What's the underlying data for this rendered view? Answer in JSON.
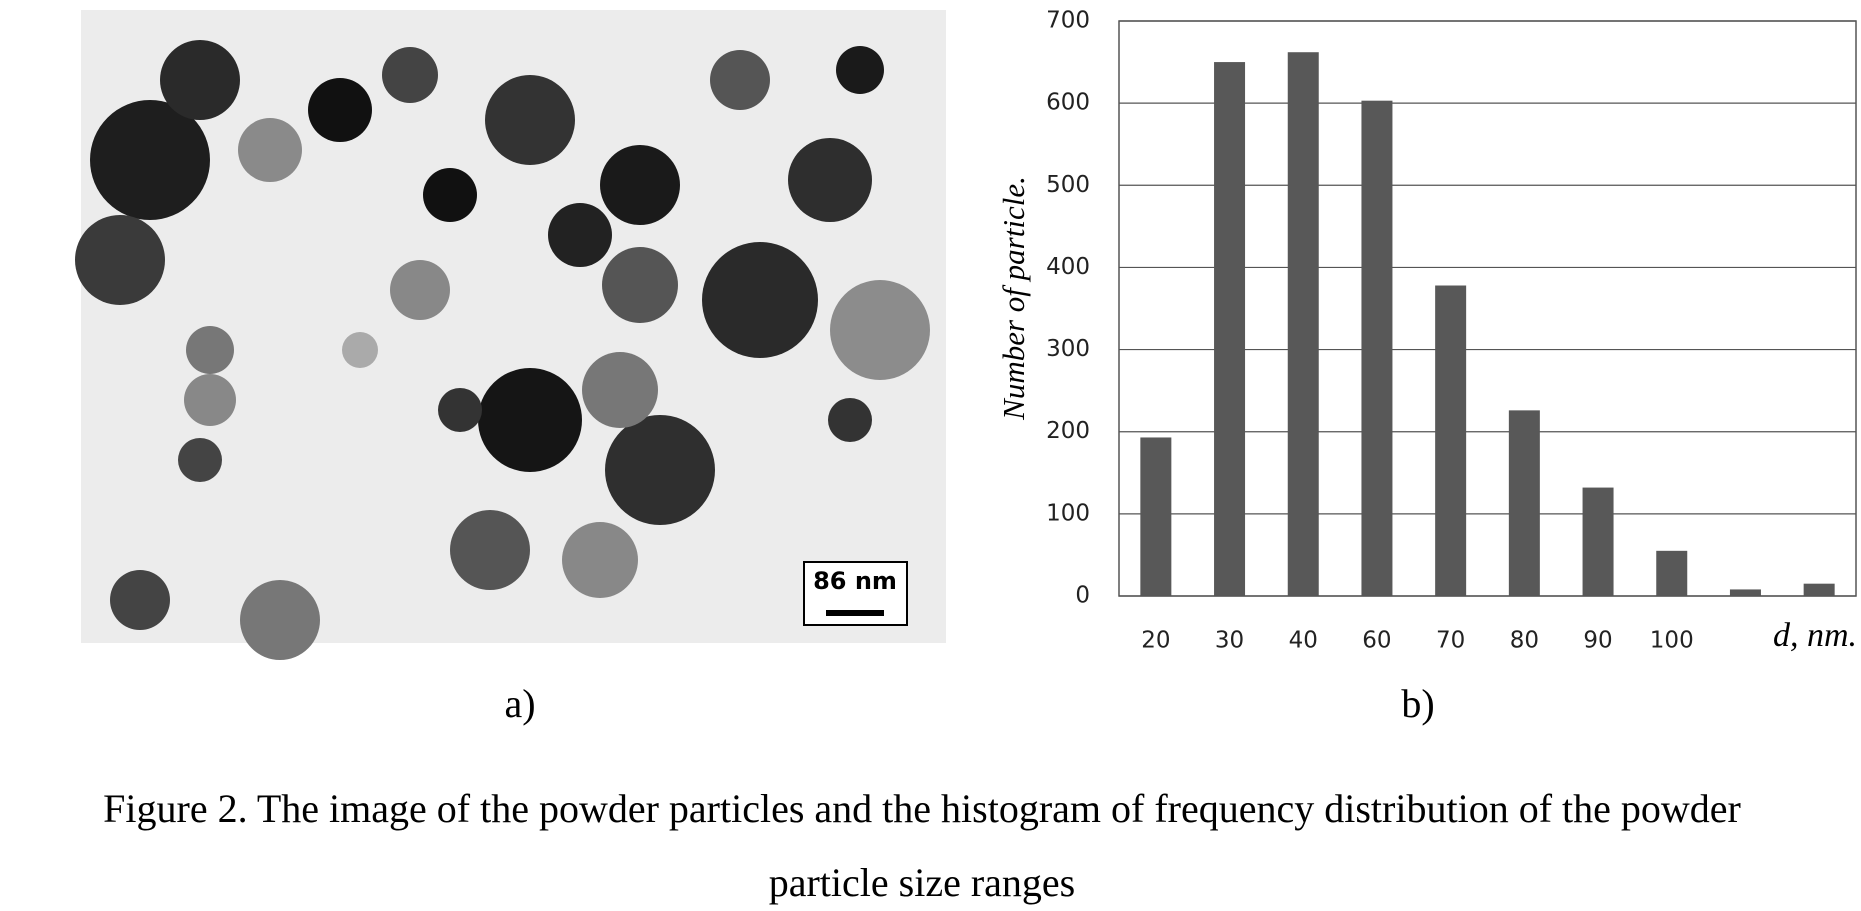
{
  "chart_data": {
    "type": "bar",
    "categories": [
      "20",
      "30",
      "40",
      "60",
      "70",
      "80",
      "90",
      "100",
      null,
      null
    ],
    "values": [
      193,
      650,
      662,
      603,
      378,
      226,
      132,
      55,
      8,
      15
    ],
    "color": "#585858",
    "ylim": [
      0,
      700
    ],
    "yticks": [
      0,
      100,
      200,
      300,
      400,
      500,
      600,
      700
    ],
    "grid": true,
    "y_label": "Number of particle.",
    "x_label": "d, nm."
  },
  "figure": {
    "scale_bar": "86 nm",
    "panel_a_label": "a)",
    "panel_b_label": "b)",
    "caption": [
      "Figure 2. The image of the powder particles and the histogram of frequency distribution of the powder",
      "particle size ranges"
    ]
  }
}
